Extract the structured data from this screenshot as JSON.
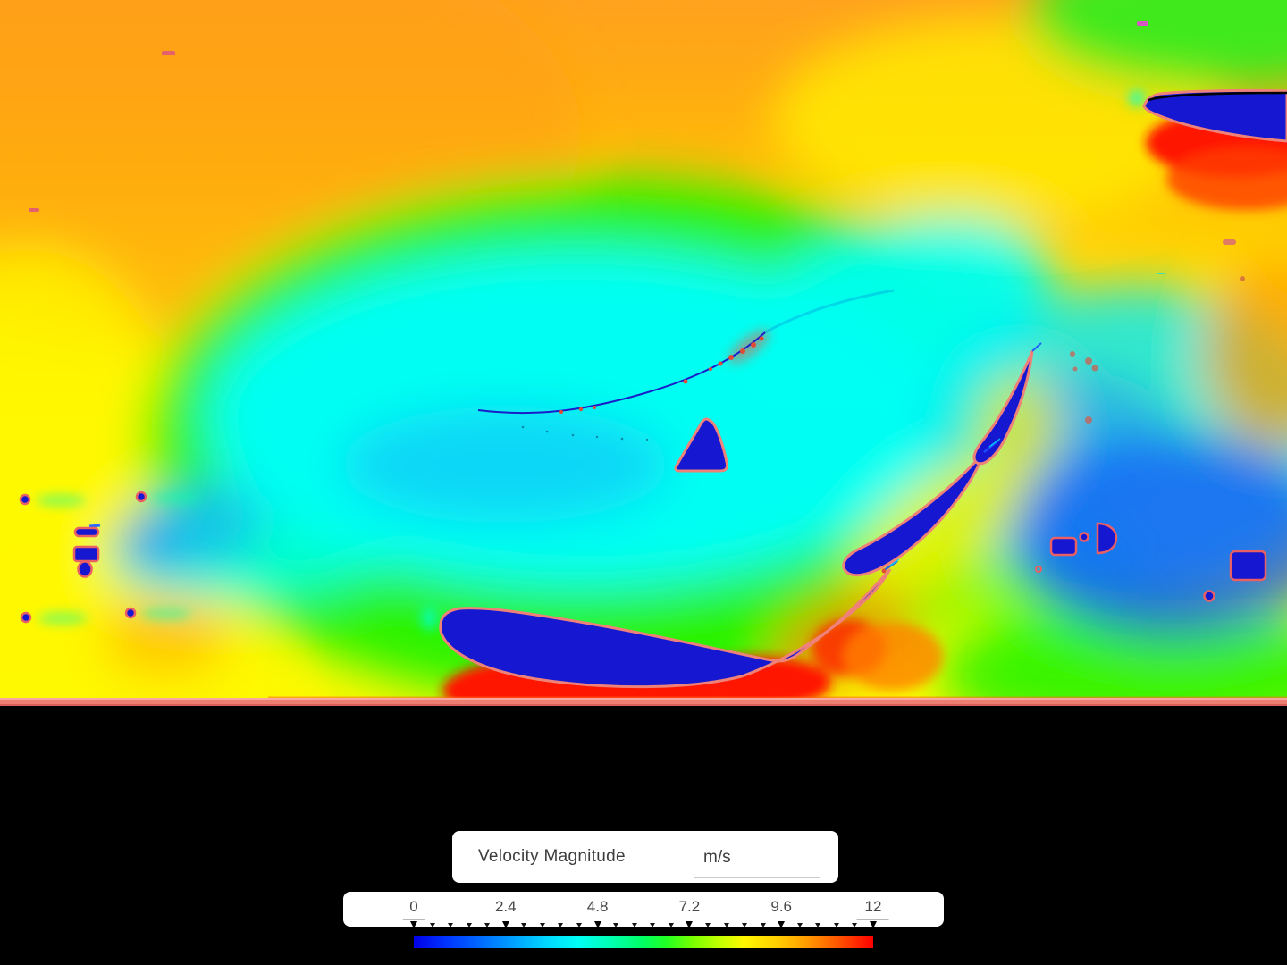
{
  "legend": {
    "field_label": "Velocity Magnitude",
    "unit_value": "m/s"
  },
  "colorbar": {
    "min_label": "0",
    "max_label": "12",
    "tick_labels": [
      "0",
      "2.4",
      "4.8",
      "7.2",
      "9.6",
      "12"
    ],
    "minor_ticks_per_interval": 4,
    "colormap": [
      {
        "p": 0,
        "c": "#0000e6"
      },
      {
        "p": 7,
        "c": "#0033ff"
      },
      {
        "p": 14,
        "c": "#0066ff"
      },
      {
        "p": 22,
        "c": "#00a4ff"
      },
      {
        "p": 29,
        "c": "#00d8ff"
      },
      {
        "p": 36,
        "c": "#00fff4"
      },
      {
        "p": 43,
        "c": "#00ffb0"
      },
      {
        "p": 50,
        "c": "#00ff62"
      },
      {
        "p": 55,
        "c": "#22ff22"
      },
      {
        "p": 61,
        "c": "#7dff00"
      },
      {
        "p": 67,
        "c": "#c8ff00"
      },
      {
        "p": 72,
        "c": "#fff700"
      },
      {
        "p": 79,
        "c": "#ffcf00"
      },
      {
        "p": 85,
        "c": "#ffa000"
      },
      {
        "p": 91,
        "c": "#ff6400"
      },
      {
        "p": 96,
        "c": "#ff2d00"
      },
      {
        "p": 100,
        "c": "#fe0000"
      }
    ]
  },
  "field_colors": {
    "freestream_orange": "#ffa21d",
    "wake_cyan": "#00fff2",
    "body_blue": "#1518d0",
    "body_outline_pink": "#ef8278",
    "small_body_outline": "#e95f63",
    "ground_salmon": "#ee7e72",
    "high_speed_red": "#ff1200"
  }
}
